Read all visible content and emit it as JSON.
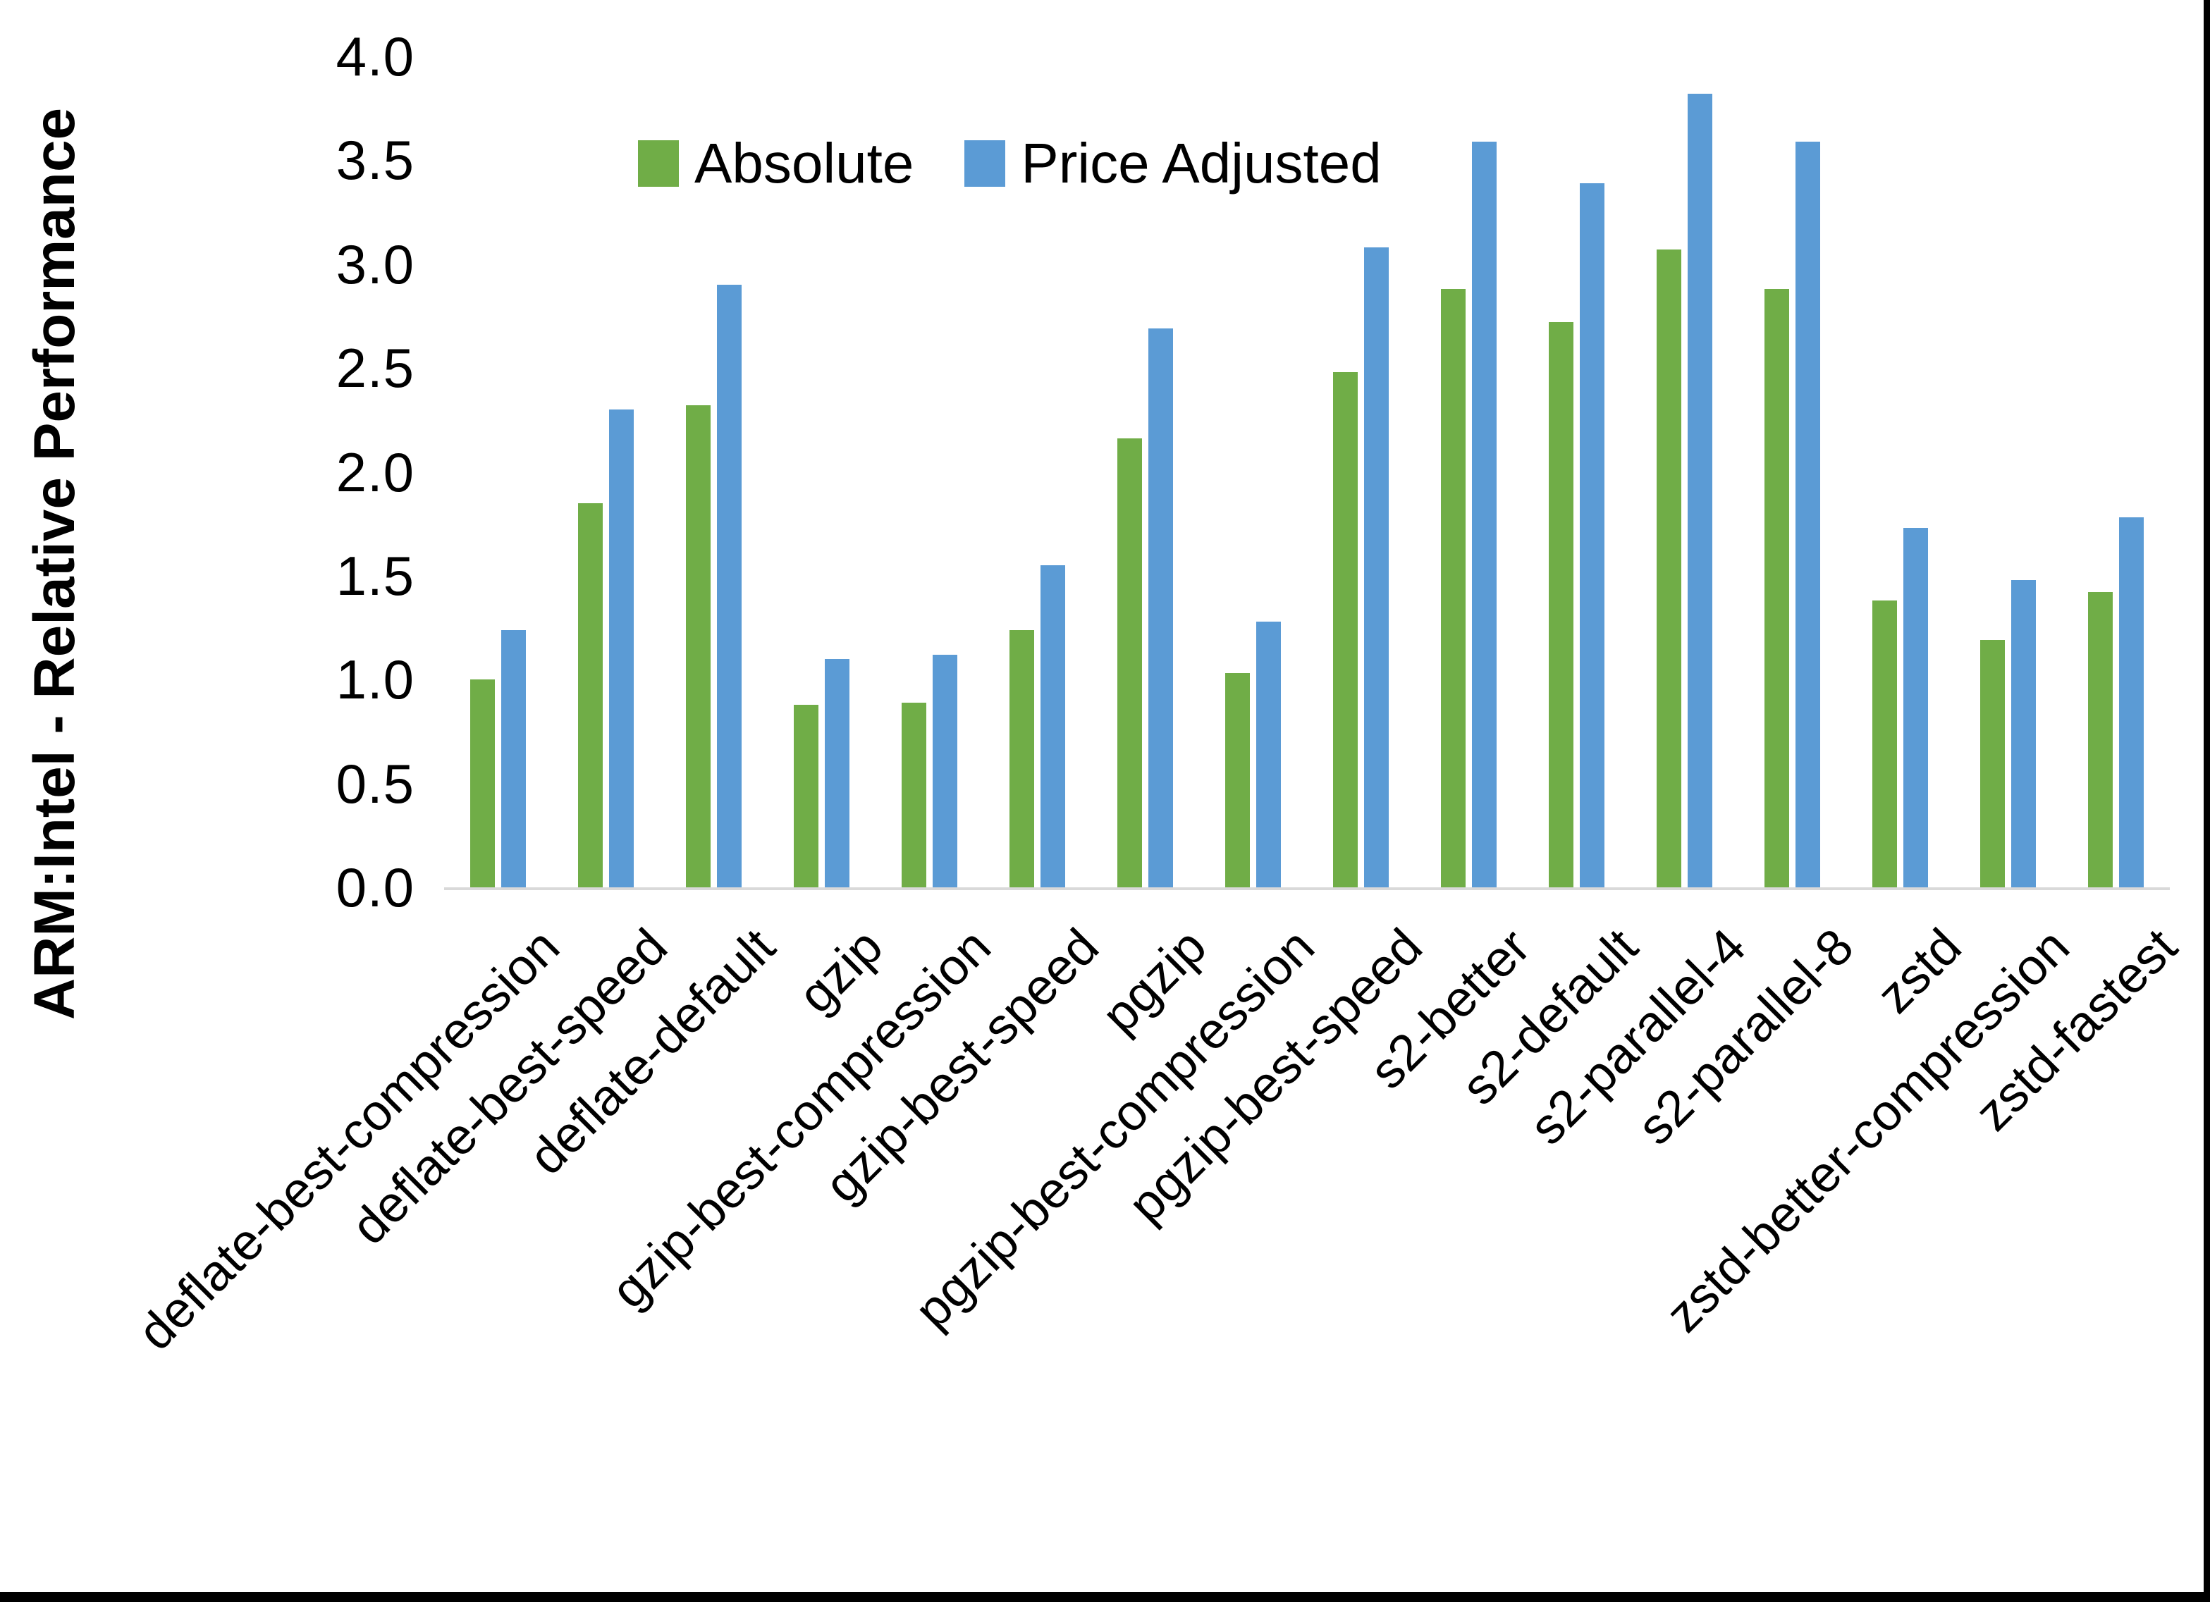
{
  "chart_data": {
    "type": "bar",
    "title": "",
    "xlabel": "",
    "ylabel": "ARM:Intel - Relative Performance",
    "ylim": [
      0.0,
      4.0
    ],
    "ytick_step": 0.5,
    "ytick_labels": [
      "4.0",
      "3.5",
      "3.0",
      "2.5",
      "2.0",
      "1.5",
      "1.0",
      "0.5",
      "0.0"
    ],
    "grid": false,
    "legend_position": "top-center",
    "x_label_rotation_deg": 45,
    "categories": [
      "deflate-best-compression",
      "deflate-best-speed",
      "deflate-default",
      "gzip",
      "gzip-best-compression",
      "gzip-best-speed",
      "pgzip",
      "pgzip-best-compression",
      "pgzip-best-speed",
      "s2-better",
      "s2-default",
      "s2-parallel-4",
      "s2-parallel-8",
      "zstd",
      "zstd-better-compression",
      "zstd-fastest"
    ],
    "series": [
      {
        "name": "Absolute",
        "color": "#70AD47",
        "values": [
          1.0,
          1.85,
          2.32,
          0.88,
          0.89,
          1.24,
          2.16,
          1.03,
          2.48,
          2.88,
          2.72,
          3.07,
          2.88,
          1.38,
          1.19,
          1.42
        ]
      },
      {
        "name": "Price Adjusted",
        "color": "#5B9BD5",
        "values": [
          1.24,
          2.3,
          2.9,
          1.1,
          1.12,
          1.55,
          2.69,
          1.28,
          3.08,
          3.59,
          3.39,
          3.82,
          3.59,
          1.73,
          1.48,
          1.78
        ]
      }
    ]
  },
  "colors": {
    "background": "#FFFFFF",
    "axis_line": "#D9D9D9",
    "text": "#000000",
    "screenshot_border": "#000000"
  }
}
